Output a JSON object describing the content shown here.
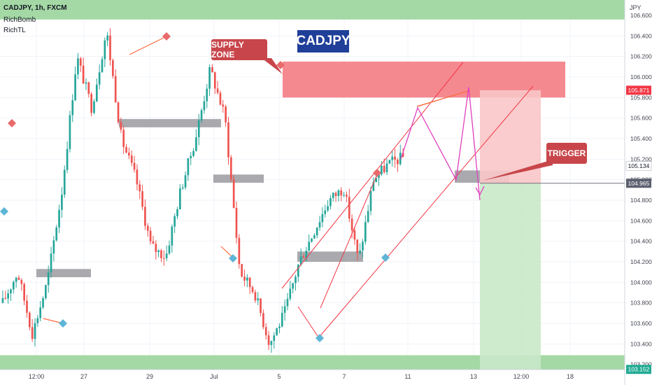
{
  "header": {
    "title": "CADJPY, 1h, FXCM",
    "indicators": [
      "RichBomb",
      "RichTL"
    ]
  },
  "annotations": {
    "supply_zone": "SUPPLY ZONE",
    "trigger": "TRIGGER",
    "pair": "CADJPY"
  },
  "axis": {
    "currency": "JPY",
    "price_ticks": [
      "106.600",
      "106.400",
      "106.200",
      "106.000",
      "105.800",
      "105.600",
      "105.400",
      "105.200",
      "105.000",
      "104.800",
      "104.600",
      "104.400",
      "104.200",
      "104.000",
      "103.800",
      "103.600",
      "103.400",
      "103.200"
    ],
    "time_ticks": [
      "12:00",
      "27",
      "29",
      "Jul",
      "5",
      "7",
      "11",
      "13",
      "12:00",
      "18"
    ]
  },
  "price_tags": [
    {
      "value": "105.871",
      "color": "#f23645"
    },
    {
      "value": "105.134",
      "color": "#ffffff",
      "text_color": "#131722"
    },
    {
      "value": "104.965",
      "color": "#5b5f6e"
    },
    {
      "value": "103.152",
      "color": "#22ab94"
    }
  ],
  "colors": {
    "up_candle": "#26a69a",
    "down_candle": "#ef5350",
    "supply_zone": "#f4838a",
    "demand_zone": "#9fd6a0",
    "gray_zone": "#9a9aa0",
    "projection": "#e040c0",
    "channel": "#f23645",
    "stop_zone": "#f9c6c8",
    "target_zone": "#c9e9c9",
    "title_box": "#1f3f99",
    "callout": "#c8464b"
  },
  "chart_data": {
    "type": "candlestick",
    "title": "CADJPY, 1h, FXCM",
    "xlabel": "",
    "ylabel": "JPY",
    "ylim": [
      103.15,
      106.75
    ],
    "x_ticks": [
      "12:00",
      "27",
      "29",
      "Jul",
      "5",
      "7",
      "11",
      "13",
      "12:00",
      "18"
    ],
    "anchors": [
      103.8,
      104.1,
      103.5,
      104.0,
      104.9,
      106.2,
      105.7,
      106.45,
      105.4,
      105.0,
      104.35,
      104.25,
      104.9,
      105.4,
      106.08,
      105.6,
      104.1,
      103.9,
      103.4,
      103.7,
      104.2,
      104.5,
      104.8,
      104.92,
      104.2,
      105.0,
      105.15,
      105.22
    ],
    "zones": [
      {
        "name": "supply-zone",
        "y0": 105.8,
        "y1": 106.15
      },
      {
        "name": "top-demand",
        "y0": 106.56,
        "y1": 106.75
      },
      {
        "name": "bottom-demand",
        "y0": 103.15,
        "y1": 103.29
      },
      {
        "name": "gray-1",
        "y0": 104.05,
        "y1": 104.13
      },
      {
        "name": "gray-2",
        "y0": 105.51,
        "y1": 105.59
      },
      {
        "name": "gray-3",
        "y0": 104.97,
        "y1": 105.05
      },
      {
        "name": "gray-4",
        "y0": 104.2,
        "y1": 104.3
      },
      {
        "name": "gray-5",
        "y0": 104.97,
        "y1": 105.09
      }
    ],
    "levels": {
      "stop": 105.871,
      "entry": 104.965,
      "target": 103.152,
      "current": 105.134
    },
    "projection_path": [
      105.2,
      105.7,
      105.0,
      105.9,
      104.8
    ]
  }
}
